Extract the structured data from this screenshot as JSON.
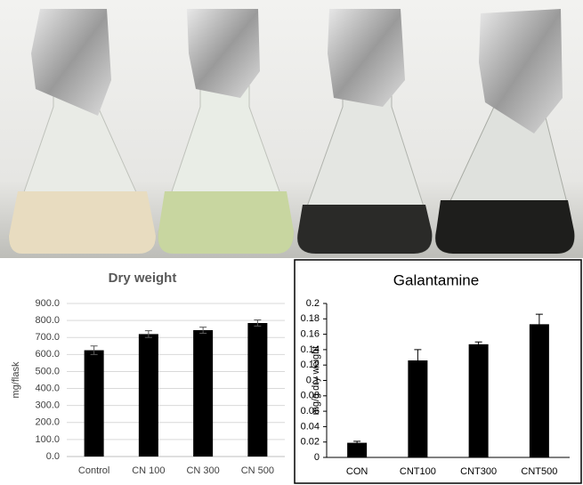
{
  "chart_data": [
    {
      "type": "bar",
      "title": "Dry weight",
      "y_label": "mg/flask",
      "categories": [
        "Control",
        "CN 100",
        "CN 300",
        "CN 500"
      ],
      "values": [
        625,
        720,
        743,
        785
      ],
      "errors": [
        25,
        20,
        18,
        18
      ],
      "color": "#000000",
      "ylim": [
        0,
        900
      ],
      "yticks": [
        {
          "value": 0,
          "label": "0.0"
        },
        {
          "value": 100,
          "label": "100.0"
        },
        {
          "value": 200,
          "label": "200.0"
        },
        {
          "value": 300,
          "label": "300.0"
        },
        {
          "value": 400,
          "label": "400.0"
        },
        {
          "value": 500,
          "label": "500.0"
        },
        {
          "value": 600,
          "label": "600.0"
        },
        {
          "value": 700,
          "label": "700.0"
        },
        {
          "value": 800,
          "label": "800.0"
        },
        {
          "value": 900,
          "label": "900.0"
        }
      ],
      "grid": true,
      "frame": false
    },
    {
      "type": "bar",
      "title": "Galantamine",
      "y_label": "mg/g dry weight",
      "categories": [
        "CON",
        "CNT100",
        "CNT300",
        "CNT500"
      ],
      "values": [
        0.019,
        0.126,
        0.147,
        0.173
      ],
      "errors": [
        0.002,
        0.014,
        0.003,
        0.013
      ],
      "color": "#000000",
      "ylim": [
        0,
        0.2
      ],
      "yticks": [
        0,
        0.02,
        0.04,
        0.06,
        0.08,
        0.1,
        0.12,
        0.14,
        0.16,
        0.18,
        0.2
      ],
      "grid": false,
      "frame": true
    }
  ]
}
